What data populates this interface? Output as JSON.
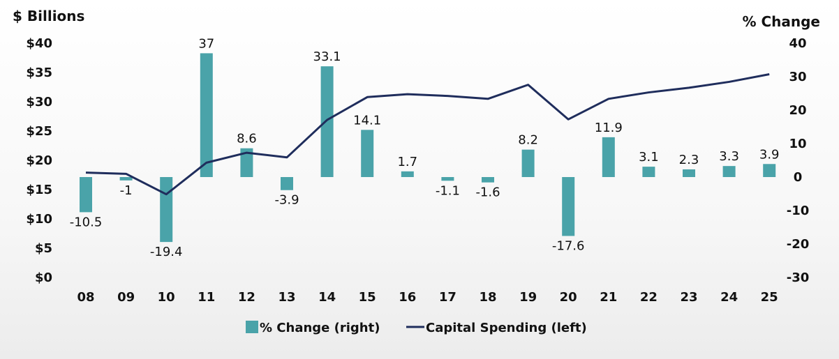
{
  "chart_data": {
    "type": "bar",
    "categories": [
      "08",
      "09",
      "10",
      "11",
      "12",
      "13",
      "14",
      "15",
      "16",
      "17",
      "18",
      "19",
      "20",
      "21",
      "22",
      "23",
      "24",
      "25"
    ],
    "series": [
      {
        "name": "% Change (right)",
        "type": "bar",
        "axis": "right",
        "color": "#4aa3a9",
        "values": [
          -10.5,
          -1,
          -19.4,
          37,
          8.6,
          -3.9,
          33.1,
          14.1,
          1.7,
          -1.1,
          -1.6,
          8.2,
          -17.6,
          11.9,
          3.1,
          2.3,
          3.3,
          3.9
        ],
        "labels": [
          "-10.5",
          "-1",
          "-19.4",
          "37",
          "8.6",
          "-3.9",
          "33.1",
          "14.1",
          "1.7",
          "-1.1",
          "-1.6",
          "8.2",
          "-17.6",
          "11.9",
          "3.1",
          "2.3",
          "3.3",
          "3.9"
        ]
      },
      {
        "name": "Capital Spending (left)",
        "type": "line",
        "axis": "left",
        "color": "#1f2d5c",
        "values": [
          17.9,
          17.7,
          14.2,
          19.6,
          21.3,
          20.5,
          26.9,
          30.8,
          31.3,
          31.0,
          30.5,
          32.9,
          27.0,
          30.5,
          31.6,
          32.4,
          33.4,
          34.7
        ]
      }
    ],
    "left_axis": {
      "title": "$ Billions",
      "ylim": [
        0,
        40
      ],
      "ticks": [
        0,
        5,
        10,
        15,
        20,
        25,
        30,
        35,
        40
      ],
      "tick_labels": [
        "$0",
        "$5",
        "$10",
        "$15",
        "$20",
        "$25",
        "$30",
        "$35",
        "$40"
      ]
    },
    "right_axis": {
      "title": "% Change",
      "ylim": [
        -30,
        40
      ],
      "ticks": [
        -30,
        -20,
        -10,
        0,
        10,
        20,
        30,
        40
      ],
      "tick_labels": [
        "-30",
        "-20",
        "-10",
        "0",
        "10",
        "20",
        "30",
        "40"
      ]
    },
    "legend": {
      "position": "bottom-center",
      "items": [
        {
          "label": "% Change (right)",
          "kind": "bar",
          "color": "#4aa3a9"
        },
        {
          "label": "Capital Spending (left)",
          "kind": "line",
          "color": "#1f2d5c"
        }
      ]
    },
    "grid": false
  }
}
